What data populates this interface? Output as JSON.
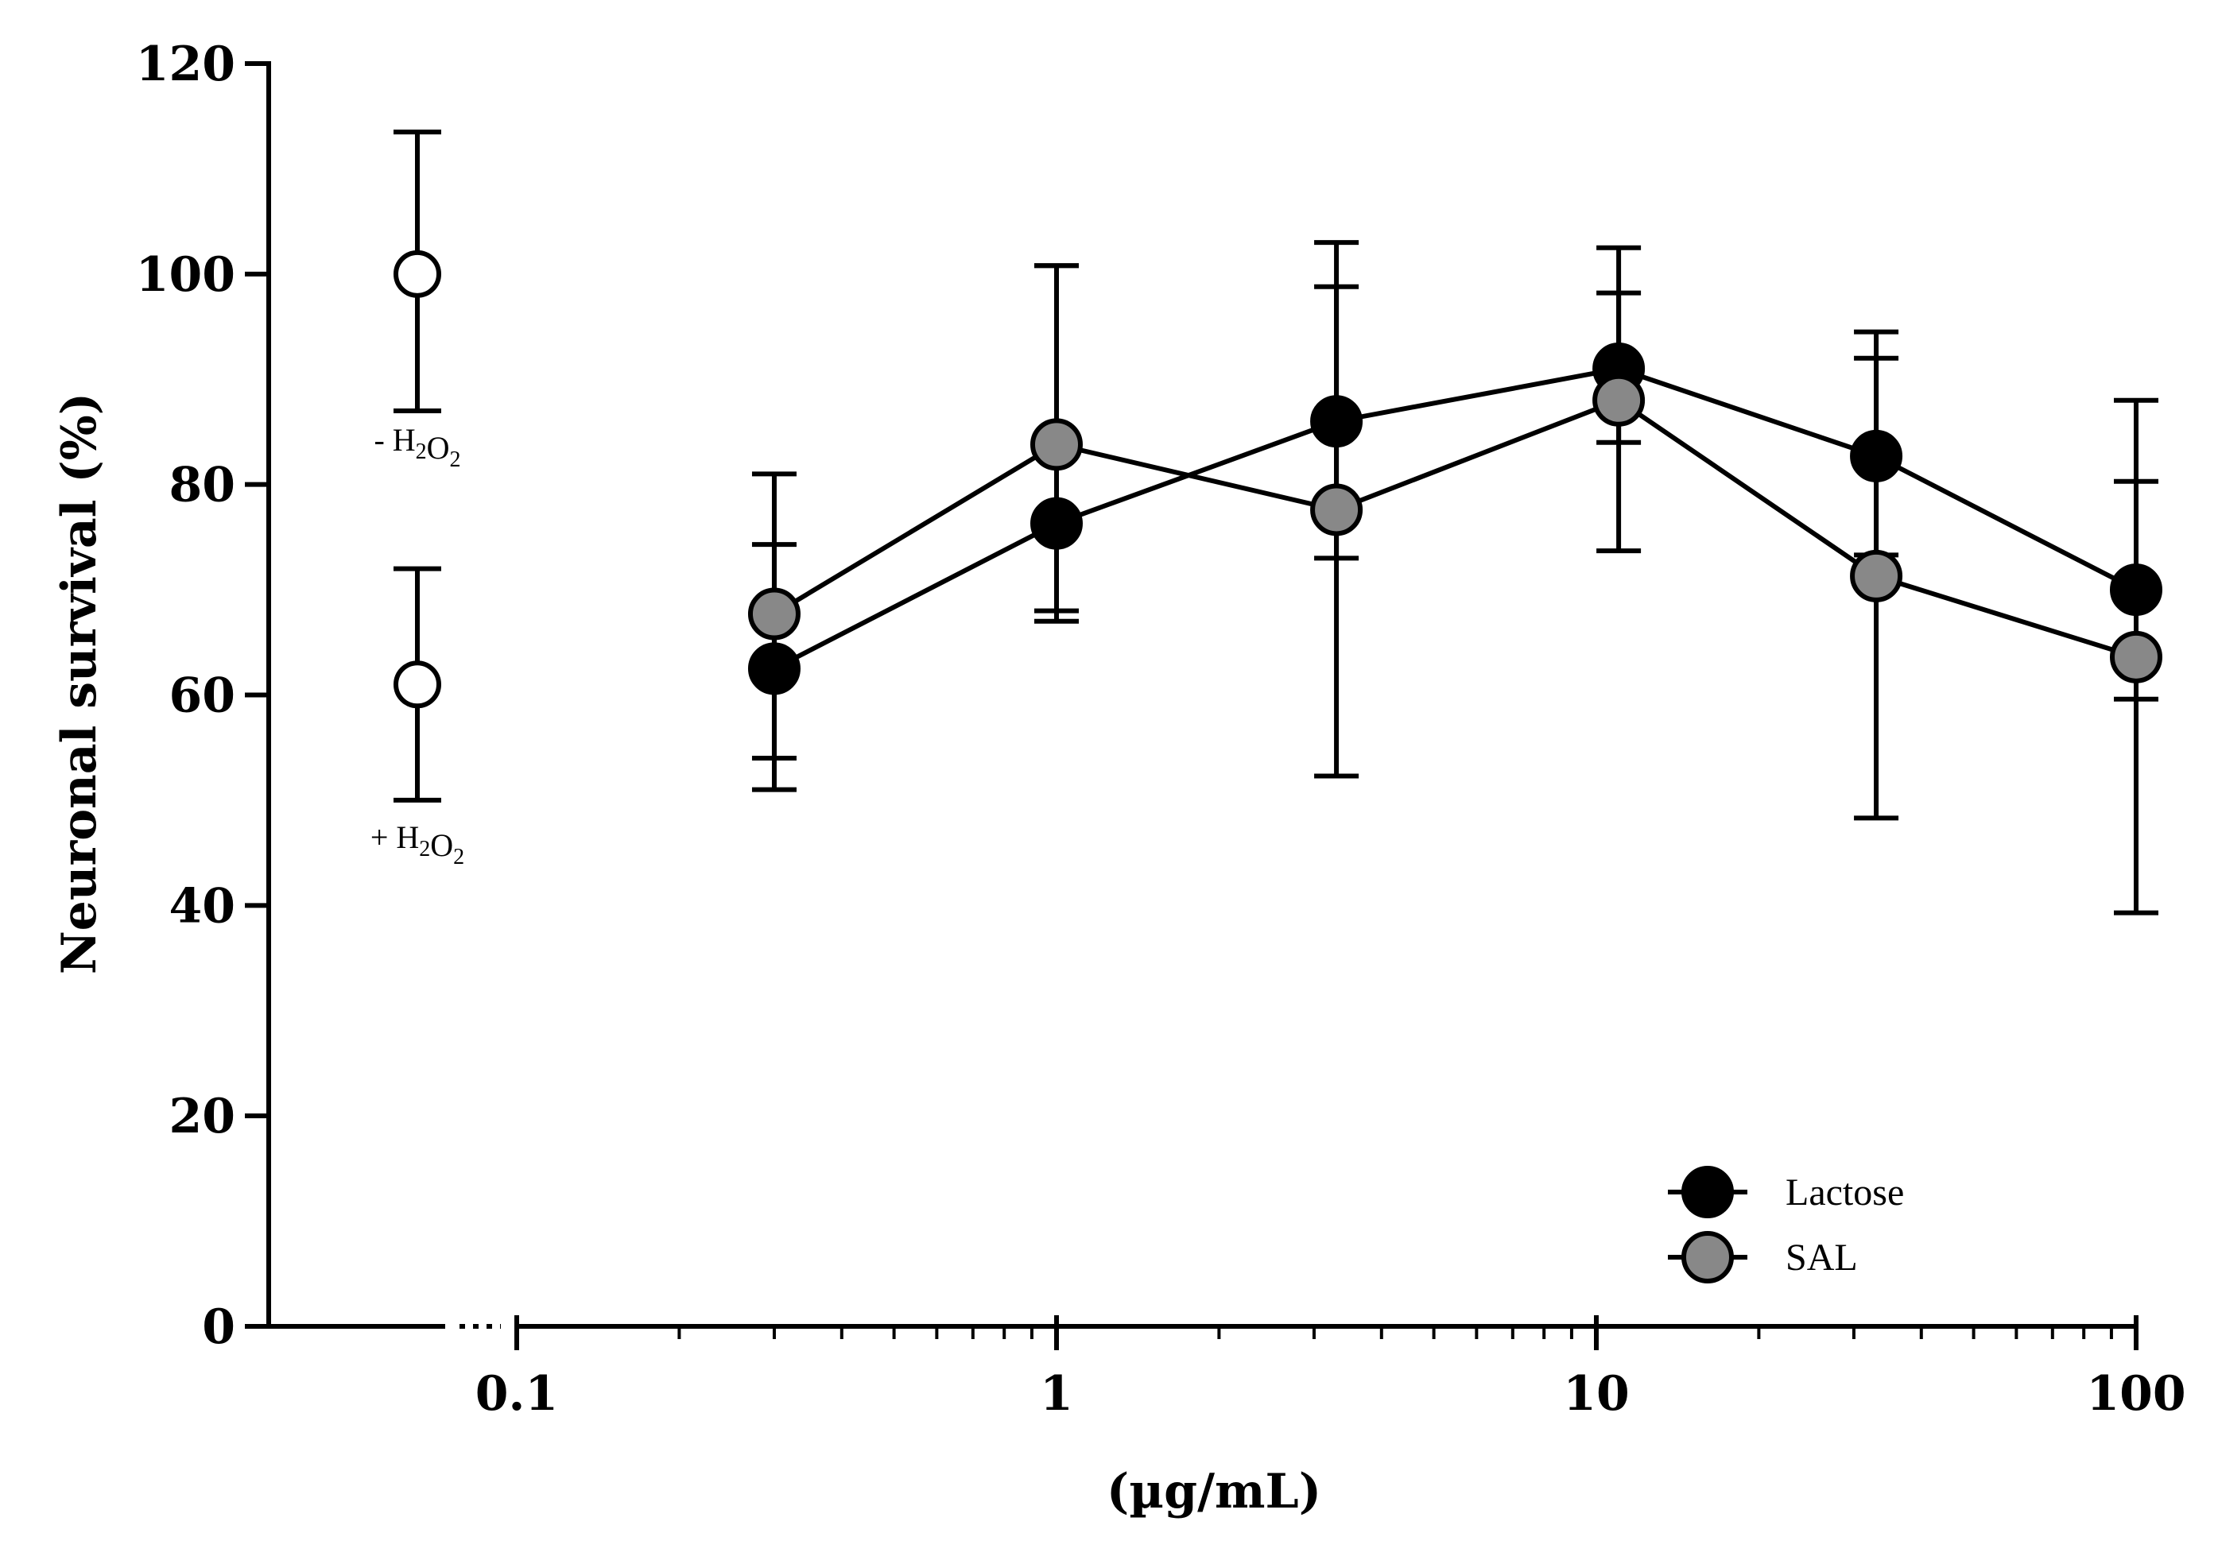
{
  "chart_data": {
    "type": "scatter",
    "xscale": "log",
    "xlabel": "(µg/mL)",
    "ylabel": "Neuronal survival (%)",
    "ylim": [
      0,
      120
    ],
    "xlim": [
      0.1,
      100
    ],
    "yticks": [
      0,
      20,
      40,
      60,
      80,
      100,
      120
    ],
    "yticklabels": [
      "0",
      "20",
      "40",
      "60",
      "80",
      "100",
      "120"
    ],
    "xticks": [
      0.1,
      1,
      10,
      100
    ],
    "xticklabels": [
      "0.1",
      "1",
      "10",
      "100"
    ],
    "legend_position": "bottom-right",
    "controls": [
      {
        "name": "no-h2o2",
        "label_sign": "-",
        "label_base": "H",
        "label_sub1": "2",
        "label_mid": "O",
        "label_sub2": "2",
        "y": 100,
        "err_low": 87,
        "err_high": 113.5
      },
      {
        "name": "with-h2o2",
        "label_sign": "+",
        "label_base": "H",
        "label_sub1": "2",
        "label_mid": "O",
        "label_sub2": "2",
        "y": 61,
        "err_low": 50,
        "err_high": 72
      }
    ],
    "series": [
      {
        "name": "Lactose",
        "color": "#000000",
        "x": [
          0.3,
          1,
          3.3,
          11,
          33,
          100
        ],
        "y": [
          62.5,
          76.3,
          86,
          91,
          82.7,
          70
        ],
        "err_low": [
          54,
          68,
          73,
          84,
          73.3,
          59.6
        ],
        "err_high": [
          74.3,
          100.8,
          98.8,
          98.2,
          92,
          80.3
        ]
      },
      {
        "name": "SAL",
        "color": "#888888",
        "x": [
          0.3,
          1,
          3.3,
          11,
          33,
          100
        ],
        "y": [
          67.7,
          83.8,
          77.6,
          88,
          71.3,
          63.6
        ],
        "err_low": [
          51,
          67,
          52.3,
          73.7,
          48.3,
          39.3
        ],
        "err_high": [
          81,
          100.8,
          103,
          102.5,
          94.5,
          88
        ]
      }
    ]
  }
}
